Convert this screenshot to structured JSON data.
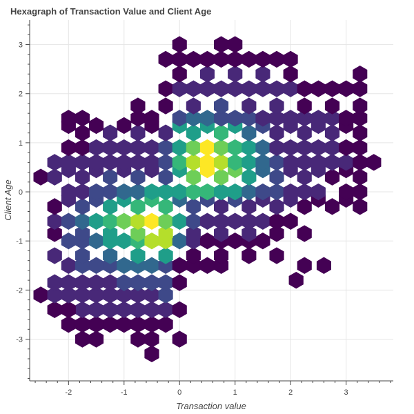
{
  "chart_data": {
    "type": "hexbin",
    "title": "Hexagraph of Transaction Value and Client Age",
    "xlabel": "Transaction value",
    "ylabel": "Client Age",
    "xlim": [
      -2.7,
      3.85
    ],
    "ylim": [
      -3.85,
      3.5
    ],
    "x_ticks": [
      -2,
      -1,
      0,
      1,
      2,
      3
    ],
    "y_ticks": [
      -3,
      -2,
      -1,
      0,
      1,
      2,
      3
    ],
    "grid": true,
    "legend": "none",
    "hex_size": 0.25,
    "colormap": [
      "#440154",
      "#482878",
      "#3e4989",
      "#31688e",
      "#26828e",
      "#1f9e89",
      "#35b779",
      "#6ece58",
      "#b5de2b",
      "#fde725"
    ],
    "bins": [
      [
        -1.75,
        -3.0,
        1
      ],
      [
        -1.5,
        -3.0,
        1
      ],
      [
        -0.75,
        -3.0,
        1
      ],
      [
        -0.5,
        -3.0,
        1
      ],
      [
        0.0,
        -3.0,
        1
      ],
      [
        -0.5,
        -3.3,
        1
      ],
      [
        -2.0,
        -2.7,
        1
      ],
      [
        -1.5,
        -2.7,
        1
      ],
      [
        -1.0,
        -2.7,
        1
      ],
      [
        -0.25,
        -2.7,
        1
      ],
      [
        -0.5,
        -2.7,
        1
      ],
      [
        -0.75,
        -2.7,
        1
      ],
      [
        -1.75,
        -2.7,
        1
      ],
      [
        -1.25,
        -2.7,
        1
      ],
      [
        -2.25,
        -2.4,
        1
      ],
      [
        -1.75,
        -2.4,
        2
      ],
      [
        -1.25,
        -2.4,
        2
      ],
      [
        -0.75,
        -2.4,
        2
      ],
      [
        -0.25,
        -2.4,
        2
      ],
      [
        -2.0,
        -2.4,
        1
      ],
      [
        -1.5,
        -2.4,
        2
      ],
      [
        -1.0,
        -2.4,
        2
      ],
      [
        -0.5,
        -2.4,
        2
      ],
      [
        0.0,
        -2.4,
        1
      ],
      [
        -2.5,
        -2.1,
        1
      ],
      [
        -2.25,
        -2.1,
        2
      ],
      [
        -2.0,
        -2.1,
        2
      ],
      [
        -1.75,
        -2.1,
        2
      ],
      [
        -1.5,
        -2.1,
        2
      ],
      [
        -1.25,
        -2.1,
        2
      ],
      [
        -1.0,
        -2.1,
        2
      ],
      [
        -0.75,
        -2.1,
        2
      ],
      [
        -0.5,
        -2.1,
        2
      ],
      [
        -0.25,
        -2.1,
        3
      ],
      [
        -2.25,
        -1.85,
        2
      ],
      [
        -1.75,
        -1.85,
        2
      ],
      [
        -1.25,
        -1.85,
        2
      ],
      [
        -0.75,
        -1.85,
        3
      ],
      [
        -0.25,
        -1.85,
        3
      ],
      [
        0.0,
        -1.85,
        1
      ],
      [
        -2.0,
        -1.85,
        2
      ],
      [
        -1.5,
        -1.85,
        2
      ],
      [
        -1.0,
        -1.85,
        3
      ],
      [
        -0.5,
        -1.85,
        3
      ],
      [
        -2.0,
        -1.5,
        2
      ],
      [
        -1.75,
        -1.5,
        3
      ],
      [
        -1.5,
        -1.5,
        3
      ],
      [
        -1.25,
        -1.5,
        3
      ],
      [
        -1.0,
        -1.5,
        4
      ],
      [
        -0.75,
        -1.5,
        4
      ],
      [
        -0.5,
        -1.5,
        4
      ],
      [
        -0.25,
        -1.5,
        3
      ],
      [
        0.0,
        -1.5,
        1
      ],
      [
        0.25,
        -1.5,
        1
      ],
      [
        0.5,
        -1.5,
        1
      ],
      [
        0.75,
        -1.5,
        1
      ],
      [
        -2.25,
        -1.3,
        2
      ],
      [
        -1.75,
        -1.3,
        3
      ],
      [
        -1.25,
        -1.3,
        4
      ],
      [
        -0.75,
        -1.3,
        5
      ],
      [
        -0.25,
        -1.3,
        5
      ],
      [
        0.25,
        -1.3,
        1
      ],
      [
        0.75,
        -1.3,
        1
      ],
      [
        1.25,
        -1.3,
        1
      ],
      [
        1.75,
        -1.3,
        1
      ],
      [
        -2.0,
        -1.0,
        3
      ],
      [
        -1.75,
        -1.0,
        3
      ],
      [
        -1.5,
        -1.0,
        4
      ],
      [
        -1.25,
        -1.0,
        5
      ],
      [
        -1.0,
        -1.0,
        5
      ],
      [
        -0.75,
        -1.0,
        6
      ],
      [
        -0.5,
        -1.0,
        8
      ],
      [
        -0.25,
        -1.0,
        8
      ],
      [
        0.0,
        -1.0,
        4
      ],
      [
        0.25,
        -1.0,
        2
      ],
      [
        0.5,
        -1.0,
        1
      ],
      [
        0.75,
        -1.0,
        1
      ],
      [
        1.0,
        -1.0,
        1
      ],
      [
        1.25,
        -1.0,
        1
      ],
      [
        1.5,
        -1.0,
        1
      ],
      [
        -2.25,
        -0.85,
        1
      ],
      [
        -1.75,
        -0.85,
        3
      ],
      [
        -1.25,
        -0.85,
        5
      ],
      [
        -0.75,
        -0.85,
        7
      ],
      [
        -0.25,
        -0.85,
        8
      ],
      [
        0.25,
        -0.85,
        2
      ],
      [
        0.75,
        -0.85,
        2
      ],
      [
        1.25,
        -0.85,
        2
      ],
      [
        1.75,
        -0.85,
        1
      ],
      [
        2.25,
        -0.85,
        1
      ],
      [
        -2.25,
        -0.6,
        2
      ],
      [
        -2.0,
        -0.6,
        3
      ],
      [
        -1.75,
        -0.6,
        4
      ],
      [
        -1.5,
        -0.6,
        5
      ],
      [
        -1.25,
        -0.6,
        6
      ],
      [
        -1.0,
        -0.6,
        7
      ],
      [
        -0.75,
        -0.6,
        8
      ],
      [
        -0.5,
        -0.6,
        9
      ],
      [
        -0.25,
        -0.6,
        7
      ],
      [
        0.0,
        -0.6,
        5
      ],
      [
        0.25,
        -0.6,
        3
      ],
      [
        0.5,
        -0.6,
        2
      ],
      [
        0.75,
        -0.6,
        2
      ],
      [
        1.0,
        -0.6,
        2
      ],
      [
        1.25,
        -0.6,
        2
      ],
      [
        1.5,
        -0.6,
        2
      ],
      [
        1.75,
        -0.6,
        1
      ],
      [
        2.0,
        -0.6,
        1
      ],
      [
        -2.25,
        -0.3,
        1
      ],
      [
        -1.75,
        -0.3,
        3
      ],
      [
        -1.25,
        -0.3,
        5
      ],
      [
        -0.75,
        -0.3,
        6
      ],
      [
        -0.25,
        -0.3,
        6
      ],
      [
        0.25,
        -0.3,
        3
      ],
      [
        0.75,
        -0.3,
        2
      ],
      [
        1.25,
        -0.3,
        2
      ],
      [
        1.75,
        -0.3,
        2
      ],
      [
        2.25,
        -0.3,
        1
      ],
      [
        2.75,
        -0.3,
        1
      ],
      [
        3.25,
        -0.3,
        1
      ],
      [
        -2.0,
        -0.15,
        2
      ],
      [
        -1.5,
        -0.15,
        3
      ],
      [
        -1.0,
        -0.15,
        5
      ],
      [
        -0.5,
        -0.15,
        6
      ],
      [
        0.0,
        -0.15,
        4
      ],
      [
        0.5,
        -0.15,
        3
      ],
      [
        1.0,
        -0.15,
        3
      ],
      [
        1.5,
        -0.15,
        2
      ],
      [
        2.0,
        -0.15,
        2
      ],
      [
        2.5,
        -0.15,
        1
      ],
      [
        3.0,
        -0.15,
        1
      ],
      [
        -2.0,
        0.0,
        2
      ],
      [
        -1.75,
        0.0,
        2
      ],
      [
        -1.5,
        0.0,
        3
      ],
      [
        -1.25,
        0.0,
        3
      ],
      [
        -1.0,
        0.0,
        4
      ],
      [
        -0.75,
        0.0,
        4
      ],
      [
        -0.5,
        0.0,
        5
      ],
      [
        -0.25,
        0.0,
        5
      ],
      [
        0.0,
        0.0,
        5
      ],
      [
        0.25,
        0.0,
        6
      ],
      [
        0.5,
        0.0,
        6
      ],
      [
        0.75,
        0.0,
        5
      ],
      [
        1.0,
        0.0,
        5
      ],
      [
        1.25,
        0.0,
        4
      ],
      [
        1.5,
        0.0,
        3
      ],
      [
        1.75,
        0.0,
        3
      ],
      [
        2.0,
        0.0,
        2
      ],
      [
        2.25,
        0.0,
        2
      ],
      [
        2.5,
        0.0,
        2
      ],
      [
        3.0,
        0.0,
        1
      ],
      [
        3.25,
        0.0,
        1
      ],
      [
        -2.5,
        0.3,
        1
      ],
      [
        -2.25,
        0.3,
        2
      ],
      [
        -1.75,
        0.3,
        2
      ],
      [
        -1.25,
        0.3,
        3
      ],
      [
        -0.75,
        0.3,
        3
      ],
      [
        -0.25,
        0.3,
        3
      ],
      [
        0.25,
        0.3,
        7
      ],
      [
        0.75,
        0.3,
        7
      ],
      [
        1.25,
        0.3,
        5
      ],
      [
        1.75,
        0.3,
        3
      ],
      [
        2.25,
        0.3,
        2
      ],
      [
        2.75,
        0.3,
        1
      ],
      [
        3.25,
        0.3,
        1
      ],
      [
        -2.0,
        0.45,
        2
      ],
      [
        -1.5,
        0.45,
        2
      ],
      [
        -1.0,
        0.45,
        2
      ],
      [
        -0.5,
        0.45,
        2
      ],
      [
        0.0,
        0.45,
        5
      ],
      [
        0.5,
        0.45,
        9
      ],
      [
        1.0,
        0.45,
        7
      ],
      [
        1.5,
        0.45,
        4
      ],
      [
        2.0,
        0.45,
        2
      ],
      [
        2.5,
        0.45,
        2
      ],
      [
        3.0,
        0.45,
        1
      ],
      [
        -2.25,
        0.6,
        2
      ],
      [
        -2.0,
        0.6,
        2
      ],
      [
        -1.75,
        0.6,
        2
      ],
      [
        -1.5,
        0.6,
        2
      ],
      [
        -1.25,
        0.6,
        2
      ],
      [
        -1.0,
        0.6,
        2
      ],
      [
        -0.75,
        0.6,
        2
      ],
      [
        -0.5,
        0.6,
        2
      ],
      [
        -0.25,
        0.6,
        3
      ],
      [
        0.0,
        0.6,
        6
      ],
      [
        0.25,
        0.6,
        8
      ],
      [
        0.5,
        0.6,
        9
      ],
      [
        0.75,
        0.6,
        8
      ],
      [
        1.0,
        0.6,
        6
      ],
      [
        1.25,
        0.6,
        5
      ],
      [
        1.5,
        0.6,
        4
      ],
      [
        1.75,
        0.6,
        3
      ],
      [
        2.0,
        0.6,
        2
      ],
      [
        2.25,
        0.6,
        2
      ],
      [
        2.5,
        0.6,
        2
      ],
      [
        2.75,
        0.6,
        2
      ],
      [
        3.0,
        0.6,
        2
      ],
      [
        3.25,
        0.6,
        1
      ],
      [
        3.5,
        0.6,
        1
      ],
      [
        -2.0,
        0.9,
        1
      ],
      [
        -1.75,
        0.9,
        1
      ],
      [
        -1.5,
        0.9,
        2
      ],
      [
        -1.25,
        0.9,
        2
      ],
      [
        -1.0,
        0.9,
        2
      ],
      [
        -0.75,
        0.9,
        2
      ],
      [
        -0.5,
        0.9,
        2
      ],
      [
        -0.25,
        0.9,
        3
      ],
      [
        0.0,
        0.9,
        5
      ],
      [
        0.25,
        0.9,
        7
      ],
      [
        0.5,
        0.9,
        9
      ],
      [
        0.75,
        0.9,
        7
      ],
      [
        1.0,
        0.9,
        6
      ],
      [
        1.25,
        0.9,
        5
      ],
      [
        1.5,
        0.9,
        4
      ],
      [
        1.75,
        0.9,
        2
      ],
      [
        2.0,
        0.9,
        2
      ],
      [
        2.25,
        0.9,
        2
      ],
      [
        2.5,
        0.9,
        2
      ],
      [
        2.75,
        0.9,
        2
      ],
      [
        3.0,
        0.9,
        1
      ],
      [
        3.25,
        0.9,
        1
      ],
      [
        -1.75,
        1.2,
        1
      ],
      [
        -1.25,
        1.2,
        2
      ],
      [
        -0.75,
        1.2,
        2
      ],
      [
        -0.25,
        1.2,
        2
      ],
      [
        0.25,
        1.2,
        5
      ],
      [
        0.75,
        1.2,
        6
      ],
      [
        1.25,
        1.2,
        4
      ],
      [
        1.75,
        1.2,
        2
      ],
      [
        2.25,
        1.2,
        2
      ],
      [
        2.75,
        1.2,
        2
      ],
      [
        3.25,
        1.2,
        1
      ],
      [
        -2.0,
        1.35,
        1
      ],
      [
        -1.5,
        1.35,
        1
      ],
      [
        -1.0,
        1.35,
        1
      ],
      [
        -0.5,
        1.35,
        1
      ],
      [
        0.0,
        1.35,
        5
      ],
      [
        0.5,
        1.35,
        5
      ],
      [
        1.0,
        1.35,
        5
      ],
      [
        1.5,
        1.35,
        3
      ],
      [
        2.0,
        1.35,
        2
      ],
      [
        2.5,
        1.35,
        2
      ],
      [
        3.0,
        1.35,
        1
      ],
      [
        -2.0,
        1.5,
        1
      ],
      [
        -1.75,
        1.5,
        1
      ],
      [
        -0.75,
        1.5,
        1
      ],
      [
        -0.5,
        1.5,
        1
      ],
      [
        0.0,
        1.5,
        3
      ],
      [
        0.25,
        1.5,
        4
      ],
      [
        0.5,
        1.5,
        4
      ],
      [
        0.75,
        1.5,
        3
      ],
      [
        1.0,
        1.5,
        3
      ],
      [
        1.25,
        1.5,
        3
      ],
      [
        1.5,
        1.5,
        2
      ],
      [
        1.75,
        1.5,
        2
      ],
      [
        2.0,
        1.5,
        2
      ],
      [
        2.25,
        1.5,
        2
      ],
      [
        2.5,
        1.5,
        2
      ],
      [
        2.75,
        1.5,
        2
      ],
      [
        3.0,
        1.5,
        1
      ],
      [
        3.25,
        1.5,
        1
      ],
      [
        -0.75,
        1.75,
        1
      ],
      [
        -0.25,
        1.75,
        1
      ],
      [
        0.25,
        1.75,
        2
      ],
      [
        0.75,
        1.75,
        3
      ],
      [
        1.25,
        1.75,
        2
      ],
      [
        1.75,
        1.75,
        2
      ],
      [
        2.25,
        1.75,
        1
      ],
      [
        2.75,
        1.75,
        1
      ],
      [
        3.25,
        1.75,
        1
      ],
      [
        -0.25,
        2.1,
        1
      ],
      [
        0.0,
        2.1,
        2
      ],
      [
        0.25,
        2.1,
        2
      ],
      [
        0.5,
        2.1,
        2
      ],
      [
        0.75,
        2.1,
        2
      ],
      [
        1.0,
        2.1,
        2
      ],
      [
        1.25,
        2.1,
        2
      ],
      [
        1.5,
        2.1,
        2
      ],
      [
        1.75,
        2.1,
        2
      ],
      [
        2.0,
        2.1,
        2
      ],
      [
        2.25,
        2.1,
        1
      ],
      [
        2.5,
        2.1,
        1
      ],
      [
        2.75,
        2.1,
        1
      ],
      [
        3.0,
        2.1,
        1
      ],
      [
        3.25,
        2.1,
        1
      ],
      [
        0.0,
        2.4,
        1
      ],
      [
        0.5,
        2.4,
        2
      ],
      [
        1.0,
        2.4,
        2
      ],
      [
        1.5,
        2.4,
        2
      ],
      [
        2.0,
        2.4,
        1
      ],
      [
        3.25,
        2.4,
        1
      ],
      [
        -0.25,
        2.7,
        1
      ],
      [
        0.0,
        2.7,
        1
      ],
      [
        0.25,
        2.7,
        1
      ],
      [
        0.5,
        2.7,
        1
      ],
      [
        0.75,
        2.7,
        1
      ],
      [
        1.0,
        2.7,
        1
      ],
      [
        1.25,
        2.7,
        1
      ],
      [
        1.5,
        2.7,
        1
      ],
      [
        1.75,
        2.7,
        1
      ],
      [
        2.0,
        2.7,
        1
      ],
      [
        0.0,
        3.0,
        1
      ],
      [
        0.75,
        3.0,
        1
      ],
      [
        1.0,
        3.0,
        1
      ],
      [
        2.1,
        -1.8,
        1
      ],
      [
        2.25,
        -1.5,
        1
      ],
      [
        2.6,
        -1.5,
        1
      ]
    ]
  }
}
